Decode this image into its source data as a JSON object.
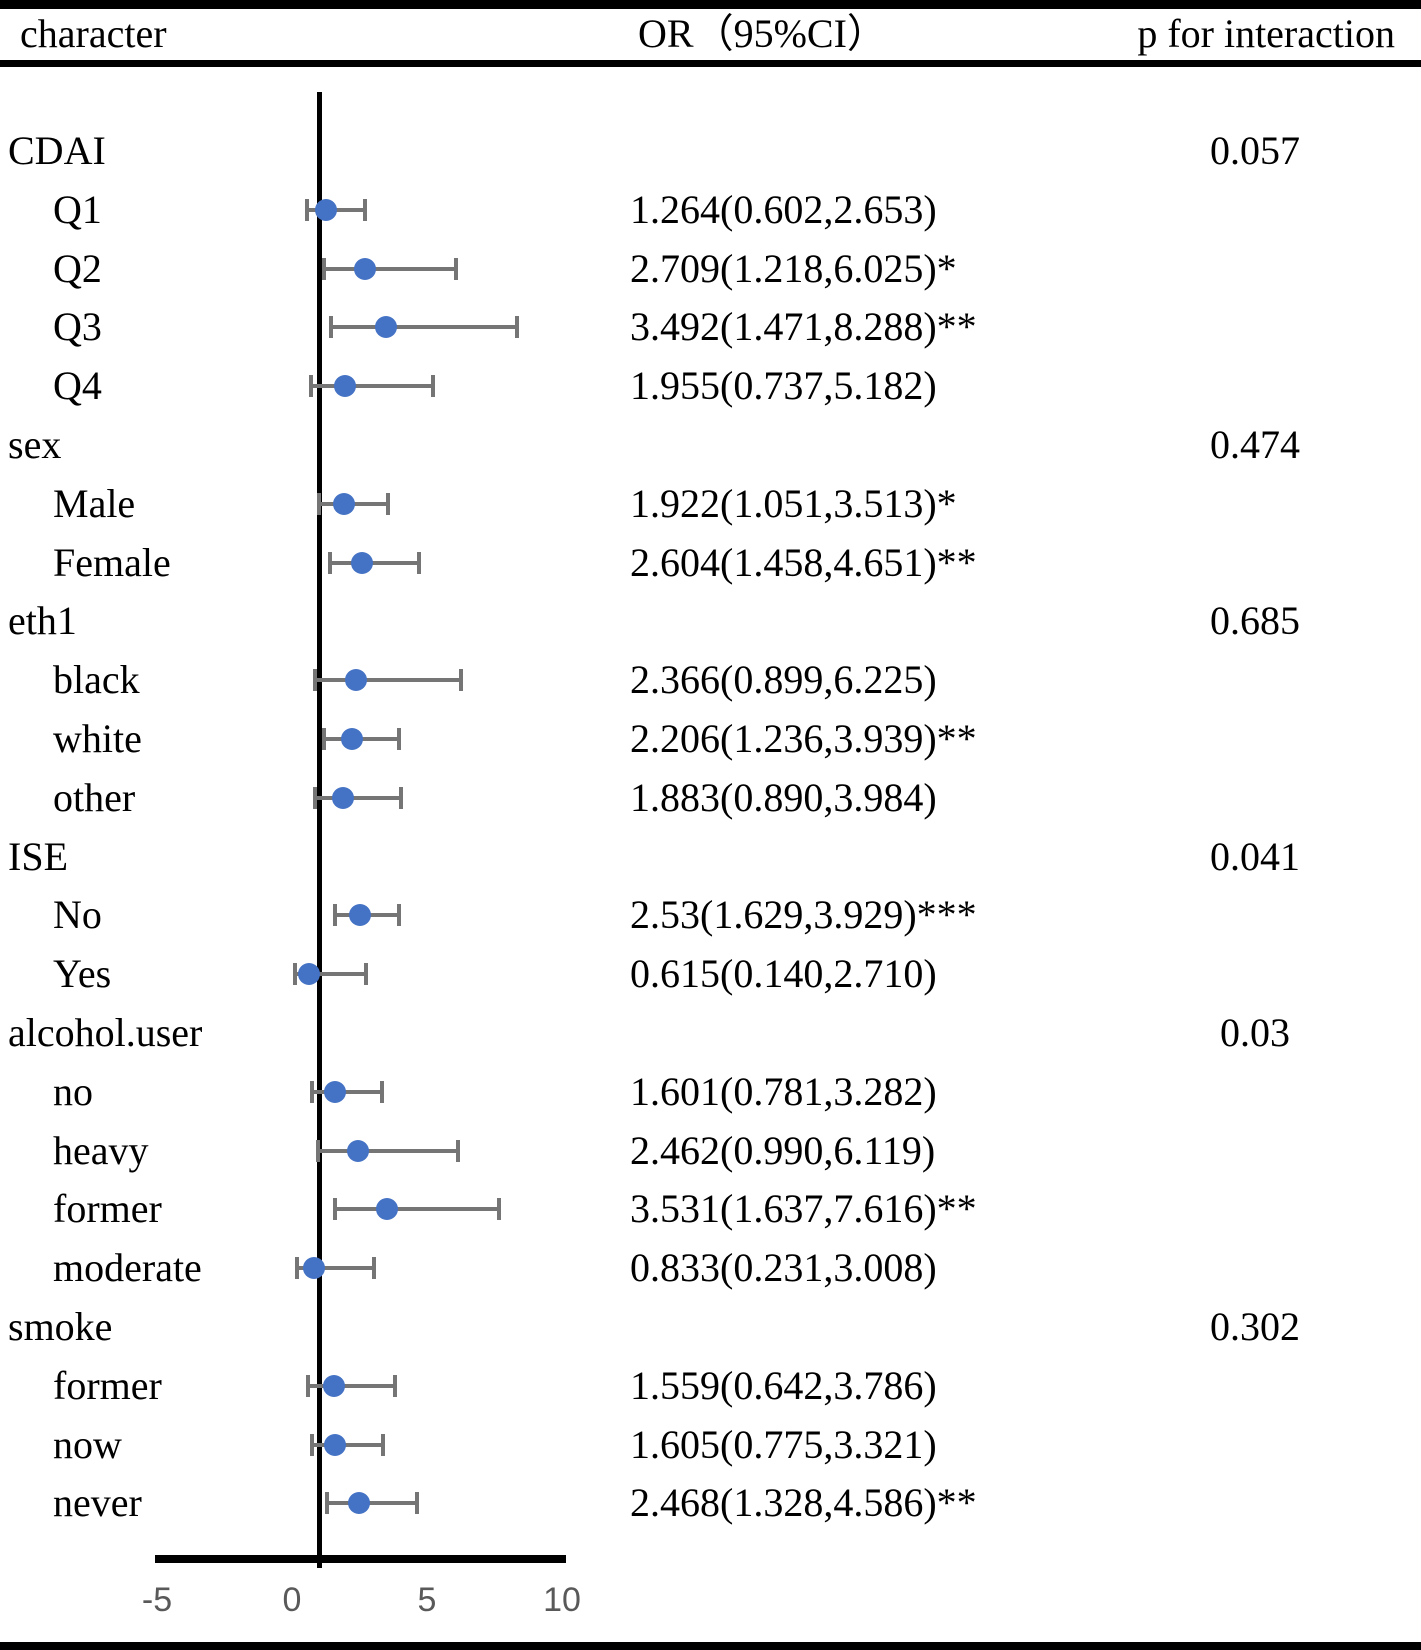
{
  "header": {
    "col_character": "character",
    "col_or": "OR（95%CI）",
    "col_p": "p for interaction"
  },
  "colors": {
    "dot": "#4472C4",
    "error_bar": "#757575",
    "axis_line": "#000000",
    "reference_line": "#000000",
    "tick_label": "#595959"
  },
  "chart_data": {
    "type": "scatter",
    "subtype": "forest-plot",
    "title": "",
    "xlabel": "",
    "ylabel": "",
    "x_axis": {
      "ticks": [
        "-5",
        "0",
        "5",
        "10"
      ],
      "tick_values": [
        -5,
        0,
        5,
        10
      ],
      "range": [
        -5,
        10
      ],
      "reference_line_x": 1,
      "grid": false
    },
    "groups": [
      {
        "label": "CDAI",
        "p_for_interaction": "0.057",
        "items": [
          {
            "label": "Q1",
            "or": 1.264,
            "ci_low": 0.602,
            "ci_high": 2.653,
            "text": "1.264(0.602,2.653)"
          },
          {
            "label": "Q2",
            "or": 2.709,
            "ci_low": 1.218,
            "ci_high": 6.025,
            "text": "2.709(1.218,6.025)*"
          },
          {
            "label": "Q3",
            "or": 3.492,
            "ci_low": 1.471,
            "ci_high": 8.288,
            "text": "3.492(1.471,8.288)**"
          },
          {
            "label": "Q4",
            "or": 1.955,
            "ci_low": 0.737,
            "ci_high": 5.182,
            "text": "1.955(0.737,5.182)"
          }
        ]
      },
      {
        "label": "sex",
        "p_for_interaction": "0.474",
        "items": [
          {
            "label": "Male",
            "or": 1.922,
            "ci_low": 1.051,
            "ci_high": 3.513,
            "text": "1.922(1.051,3.513)*"
          },
          {
            "label": "Female",
            "or": 2.604,
            "ci_low": 1.458,
            "ci_high": 4.651,
            "text": "2.604(1.458,4.651)**"
          }
        ]
      },
      {
        "label": "eth1",
        "p_for_interaction": "0.685",
        "items": [
          {
            "label": "black",
            "or": 2.366,
            "ci_low": 0.899,
            "ci_high": 6.225,
            "text": "2.366(0.899,6.225)"
          },
          {
            "label": "white",
            "or": 2.206,
            "ci_low": 1.236,
            "ci_high": 3.939,
            "text": "2.206(1.236,3.939)**"
          },
          {
            "label": "other",
            "or": 1.883,
            "ci_low": 0.89,
            "ci_high": 3.984,
            "text": "1.883(0.890,3.984)"
          }
        ]
      },
      {
        "label": "ISE",
        "p_for_interaction": "0.041",
        "items": [
          {
            "label": "No",
            "or": 2.53,
            "ci_low": 1.629,
            "ci_high": 3.929,
            "text": "2.53(1.629,3.929)***"
          },
          {
            "label": "Yes",
            "or": 0.615,
            "ci_low": 0.14,
            "ci_high": 2.71,
            "text": "0.615(0.140,2.710)"
          }
        ]
      },
      {
        "label": "alcohol.user",
        "p_for_interaction": "0.03",
        "items": [
          {
            "label": "no",
            "or": 1.601,
            "ci_low": 0.781,
            "ci_high": 3.282,
            "text": "1.601(0.781,3.282)"
          },
          {
            "label": "heavy",
            "or": 2.462,
            "ci_low": 0.99,
            "ci_high": 6.119,
            "text": "2.462(0.990,6.119)"
          },
          {
            "label": "former",
            "or": 3.531,
            "ci_low": 1.637,
            "ci_high": 7.616,
            "text": "3.531(1.637,7.616)**"
          },
          {
            "label": "moderate",
            "or": 0.833,
            "ci_low": 0.231,
            "ci_high": 3.008,
            "text": "0.833(0.231,3.008)"
          }
        ]
      },
      {
        "label": "smoke",
        "p_for_interaction": "0.302",
        "items": [
          {
            "label": "former",
            "or": 1.559,
            "ci_low": 0.642,
            "ci_high": 3.786,
            "text": "1.559(0.642,3.786)"
          },
          {
            "label": "now",
            "or": 1.605,
            "ci_low": 0.775,
            "ci_high": 3.321,
            "text": "1.605(0.775,3.321)"
          },
          {
            "label": "never",
            "or": 2.468,
            "ci_low": 1.328,
            "ci_high": 4.586,
            "text": "2.468(1.328,4.586)**"
          }
        ]
      }
    ]
  }
}
